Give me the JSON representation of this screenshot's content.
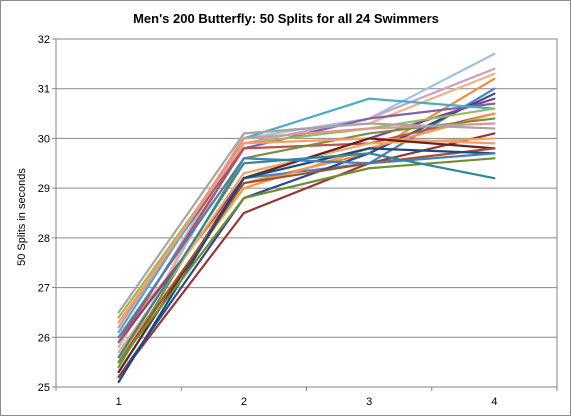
{
  "chart_data": {
    "type": "line",
    "title": "Men's 200 Butterfly: 50 Splits for all 24 Swimmers",
    "xlabel": "",
    "ylabel": "50 Splits in seconds",
    "categories": [
      "1",
      "2",
      "3",
      "4"
    ],
    "ylim": [
      25,
      32
    ],
    "yticks": [
      25,
      26,
      27,
      28,
      29,
      30,
      31,
      32
    ],
    "grid": true,
    "legend": "none",
    "series": [
      {
        "color": "#9dc3e6",
        "values": [
          25.8,
          30.0,
          30.4,
          31.7
        ]
      },
      {
        "color": "#c8a2c8",
        "values": [
          25.5,
          29.9,
          30.4,
          31.4
        ]
      },
      {
        "color": "#f4b183",
        "values": [
          25.4,
          30.1,
          30.3,
          31.3
        ]
      },
      {
        "color": "#e69138",
        "values": [
          26.0,
          29.1,
          29.7,
          31.2
        ]
      },
      {
        "color": "#4f81bd",
        "values": [
          25.3,
          29.2,
          29.5,
          31.0
        ]
      },
      {
        "color": "#2e4b8e",
        "values": [
          25.2,
          28.8,
          29.7,
          30.9
        ]
      },
      {
        "color": "#7f3f98",
        "values": [
          25.9,
          29.2,
          30.0,
          30.8
        ]
      },
      {
        "color": "#8064a2",
        "values": [
          26.3,
          29.8,
          30.4,
          30.7
        ]
      },
      {
        "color": "#4bacc6",
        "values": [
          26.1,
          30.0,
          30.8,
          30.6
        ]
      },
      {
        "color": "#9bbb59",
        "values": [
          26.4,
          29.9,
          30.2,
          30.6
        ]
      },
      {
        "color": "#c0504d",
        "values": [
          25.9,
          29.8,
          29.9,
          30.5
        ]
      },
      {
        "color": "#f79646",
        "values": [
          25.6,
          29.0,
          29.8,
          30.5
        ]
      },
      {
        "color": "#76923c",
        "values": [
          25.4,
          29.6,
          30.1,
          30.4
        ]
      },
      {
        "color": "#d99694",
        "values": [
          26.2,
          30.0,
          30.2,
          30.3
        ]
      },
      {
        "color": "#a6a6a6",
        "values": [
          26.5,
          30.1,
          30.3,
          30.2
        ]
      },
      {
        "color": "#953735",
        "values": [
          25.2,
          28.5,
          29.5,
          30.1
        ]
      },
      {
        "color": "#f2a65a",
        "values": [
          25.7,
          29.3,
          29.9,
          30.0
        ]
      },
      {
        "color": "#ff9966",
        "values": [
          26.3,
          29.9,
          30.0,
          29.9
        ]
      },
      {
        "color": "#632423",
        "values": [
          25.3,
          29.2,
          30.0,
          29.8
        ]
      },
      {
        "color": "#a0522d",
        "values": [
          25.5,
          29.1,
          29.5,
          29.8
        ]
      },
      {
        "color": "#1f497d",
        "values": [
          25.1,
          29.2,
          29.8,
          29.7
        ]
      },
      {
        "color": "#4a7ebb",
        "values": [
          26.0,
          29.6,
          29.5,
          29.7
        ]
      },
      {
        "color": "#6f8f2f",
        "values": [
          25.5,
          28.8,
          29.4,
          29.6
        ]
      },
      {
        "color": "#31859c",
        "values": [
          25.6,
          29.5,
          29.7,
          29.2
        ]
      }
    ]
  }
}
